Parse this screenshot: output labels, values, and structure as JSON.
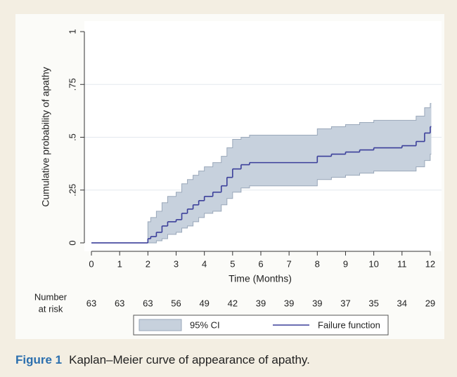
{
  "chart_data": {
    "type": "step",
    "y_label": "Cumulative probability of apathy",
    "x_label": "Time (Months)",
    "x": [
      0,
      2,
      2.1,
      2.3,
      2.5,
      2.7,
      3,
      3.2,
      3.4,
      3.6,
      3.8,
      4,
      4.3,
      4.6,
      4.8,
      5,
      5.3,
      5.6,
      8,
      8.5,
      9,
      9.5,
      10,
      11,
      11.5,
      11.8,
      12
    ],
    "series": [
      {
        "name": "95% CI",
        "color": "#c7d1dd",
        "edge_color": "#9aa8ba",
        "lower": [
          0,
          0,
          0,
          0.01,
          0.02,
          0.04,
          0.05,
          0.07,
          0.08,
          0.1,
          0.12,
          0.14,
          0.15,
          0.18,
          0.21,
          0.24,
          0.26,
          0.27,
          0.3,
          0.31,
          0.32,
          0.33,
          0.34,
          0.34,
          0.36,
          0.39,
          0.42
        ],
        "upper": [
          0,
          0.1,
          0.12,
          0.15,
          0.19,
          0.22,
          0.24,
          0.28,
          0.3,
          0.32,
          0.34,
          0.36,
          0.38,
          0.41,
          0.45,
          0.49,
          0.5,
          0.51,
          0.54,
          0.55,
          0.56,
          0.57,
          0.58,
          0.58,
          0.6,
          0.64,
          0.66
        ]
      },
      {
        "name": "Failure function",
        "color": "#3b3f9a",
        "values": [
          0,
          0.02,
          0.03,
          0.05,
          0.08,
          0.1,
          0.11,
          0.14,
          0.16,
          0.18,
          0.2,
          0.22,
          0.24,
          0.27,
          0.31,
          0.35,
          0.37,
          0.38,
          0.41,
          0.42,
          0.43,
          0.44,
          0.45,
          0.46,
          0.48,
          0.52,
          0.55
        ]
      }
    ],
    "xlim": [
      -0.25,
      12.4
    ],
    "ylim": [
      -0.04,
      1.05
    ],
    "xticks": [
      0,
      1,
      2,
      3,
      4,
      5,
      6,
      7,
      8,
      9,
      10,
      11,
      12
    ],
    "yticks": [
      0,
      {
        "value": 0.25,
        "label": ".25"
      },
      {
        "value": 0.5,
        "label": ".5"
      },
      {
        "value": 0.75,
        "label": ".75"
      },
      1
    ],
    "grid": true,
    "at_risk": {
      "label": [
        "Number",
        "at risk"
      ],
      "values": [
        "63",
        "63",
        "63",
        "56",
        "49",
        "42",
        "39",
        "39",
        "39",
        "37",
        "35",
        "34",
        "29"
      ]
    }
  },
  "caption": {
    "label": "Figure 1",
    "text": "Kaplan–Meier curve of appearance of apathy."
  }
}
